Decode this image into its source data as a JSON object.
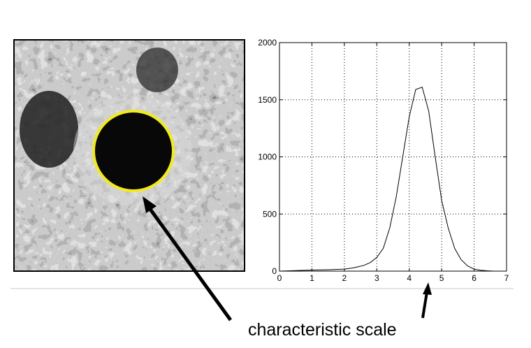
{
  "figure": {
    "caption": "characteristic scale",
    "colors": {
      "circle": "#f2ea1d",
      "blob": "#080808",
      "arrow": "#000000",
      "separator": "#c9c9c9"
    }
  },
  "chart_data": {
    "type": "line",
    "title": "",
    "xlabel": "",
    "ylabel": "",
    "xlim": [
      0,
      7
    ],
    "ylim": [
      0,
      2000
    ],
    "xticks": [
      "0",
      "1",
      "2",
      "3",
      "4",
      "5",
      "6",
      "7"
    ],
    "yticks": [
      "0",
      "500",
      "1000",
      "1500",
      "2000"
    ],
    "grid": "dotted",
    "series": [
      {
        "x": [
          0,
          0.5,
          1,
          1.5,
          2,
          2.3,
          2.6,
          2.8,
          3.0,
          3.2,
          3.4,
          3.6,
          3.8,
          4.0,
          4.2,
          4.4,
          4.6,
          4.8,
          5.0,
          5.2,
          5.4,
          5.6,
          5.8,
          6.0,
          6.2,
          6.4,
          6.6
        ],
        "y": [
          0,
          5,
          10,
          12,
          18,
          30,
          50,
          75,
          120,
          200,
          380,
          650,
          1000,
          1350,
          1590,
          1610,
          1400,
          1000,
          620,
          380,
          200,
          100,
          45,
          18,
          8,
          3,
          0
        ]
      }
    ]
  }
}
